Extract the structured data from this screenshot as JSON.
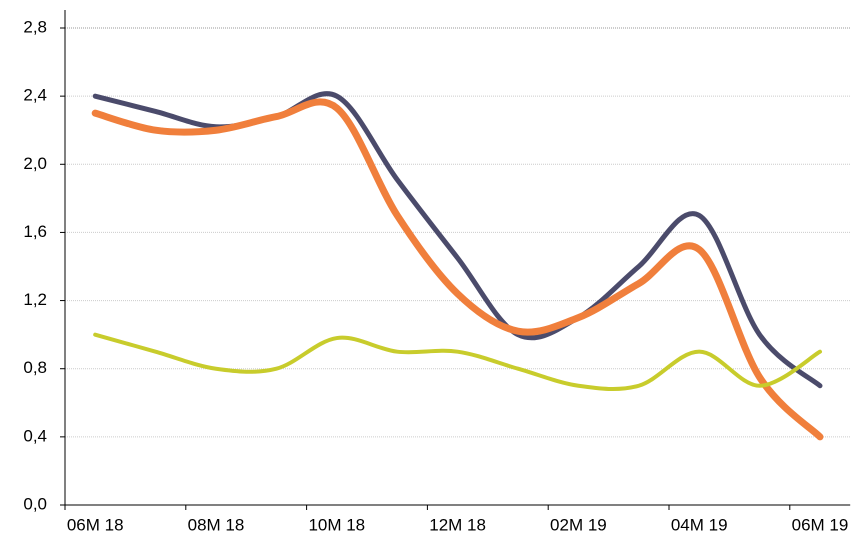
{
  "chart_data": {
    "type": "line",
    "categories": [
      "06M 18",
      null,
      "08M 18",
      null,
      "10M 18",
      null,
      "12M 18",
      null,
      "02M 19",
      null,
      "04M 19",
      null,
      "06M 19"
    ],
    "series": [
      {
        "color": "#4b4b6b",
        "values": [
          2.4,
          2.31,
          2.22,
          2.28,
          2.4,
          1.91,
          1.45,
          1.0,
          1.1,
          1.4,
          1.7,
          1.0,
          0.7
        ]
      },
      {
        "color": "#f07f3c",
        "values": [
          2.3,
          2.2,
          2.2,
          2.28,
          2.33,
          1.7,
          1.24,
          1.02,
          1.1,
          1.3,
          1.5,
          0.75,
          0.4
        ]
      },
      {
        "color": "#c8cc2c",
        "values": [
          1.0,
          0.9,
          0.8,
          0.8,
          0.98,
          0.9,
          0.9,
          0.8,
          0.7,
          0.7,
          0.9,
          0.7,
          0.9
        ]
      }
    ],
    "ylim": [
      0,
      2.8
    ],
    "yticks": [
      {
        "value": 0,
        "label": "0,0"
      },
      {
        "value": 0.4,
        "label": "0,4"
      },
      {
        "value": 0.8,
        "label": "0,8"
      },
      {
        "value": 1.2,
        "label": "1,2"
      },
      {
        "value": 1.6,
        "label": "1,6"
      },
      {
        "value": 2.0,
        "label": "2,0"
      },
      {
        "value": 2.4,
        "label": "2,4"
      },
      {
        "value": 2.8,
        "label": "2,8"
      }
    ],
    "grid": true
  }
}
